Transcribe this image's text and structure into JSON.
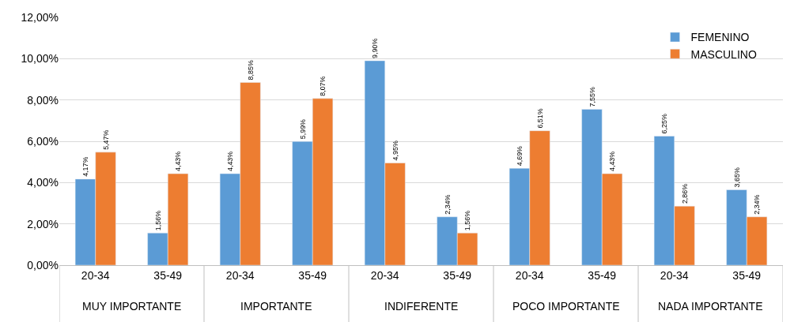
{
  "chart_data": {
    "type": "bar",
    "categories": [
      "20-34",
      "35-49",
      "20-34",
      "35-49",
      "20-34",
      "35-49",
      "20-34",
      "35-49",
      "20-34",
      "35-49"
    ],
    "series": [
      {
        "name": "FEMENINO",
        "color": "#5b9bd5",
        "values": [
          4.17,
          1.56,
          4.43,
          5.99,
          9.9,
          2.34,
          4.69,
          7.55,
          6.25,
          3.65
        ],
        "value_labels": [
          "4,17%",
          "1,56%",
          "4,43%",
          "5,99%",
          "9,90%",
          "2,34%",
          "4,69%",
          "7,55%",
          "6,25%",
          "3,65%"
        ]
      },
      {
        "name": "MASCULINO",
        "color": "#ed7d31",
        "values": [
          5.47,
          4.43,
          8.85,
          8.07,
          4.95,
          1.56,
          6.51,
          4.43,
          2.86,
          2.34
        ],
        "value_labels": [
          "5,47%",
          "4,43%",
          "8,85%",
          "8,07%",
          "4,95%",
          "1,56%",
          "6,51%",
          "4,43%",
          "2,86%",
          "2,34%"
        ]
      }
    ],
    "annotations": [
      "MUY IMPORTANTE",
      "IMPORTANTE",
      "INDIFERENTE",
      "POCO IMPORTANTE",
      "NADA IMPORTANTE"
    ],
    "ylim": [
      0,
      12
    ],
    "yticks": [
      {
        "value": 0,
        "label": "0,00%"
      },
      {
        "value": 2,
        "label": "2,00%"
      },
      {
        "value": 4,
        "label": "4,00%"
      },
      {
        "value": 6,
        "label": "6,00%"
      },
      {
        "value": 8,
        "label": "8,00%"
      },
      {
        "value": 10,
        "label": "10,00%"
      },
      {
        "value": 12,
        "label": "12,00%"
      }
    ],
    "grid": "y",
    "legend": "top right"
  }
}
